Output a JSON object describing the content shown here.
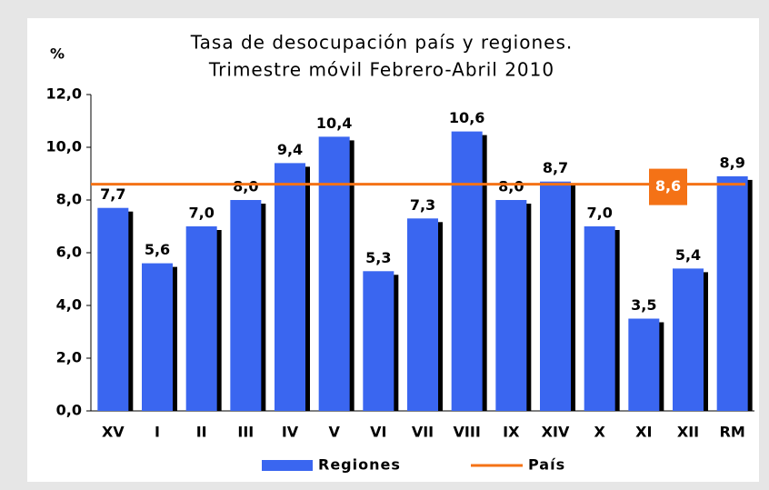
{
  "chart_data": {
    "type": "bar",
    "title": "Tasa de desocupación país y regiones.",
    "subtitle": "Trimestre móvil Febrero-Abril 2010",
    "y_label": "%",
    "categories": [
      "XV",
      "I",
      "II",
      "III",
      "IV",
      "V",
      "VI",
      "VII",
      "VIII",
      "IX",
      "XIV",
      "X",
      "XI",
      "XII",
      "RM"
    ],
    "series": [
      {
        "name": "Regiones",
        "color": "#3a66f0",
        "values": [
          7.7,
          5.6,
          7.0,
          8.0,
          9.4,
          10.4,
          5.3,
          7.3,
          10.6,
          8.0,
          8.7,
          7.0,
          3.5,
          5.4,
          8.9
        ],
        "value_labels": [
          "7,7",
          "5,6",
          "7,0",
          "8,0",
          "9,4",
          "10,4",
          "5,3",
          "7,3",
          "10,6",
          "8,0",
          "8,7",
          "7,0",
          "3,5",
          "5,4",
          "8,9"
        ]
      }
    ],
    "reference_line": {
      "name": "País",
      "value": 8.6,
      "value_label": "8,6",
      "color": "#f47216"
    },
    "ylim": [
      0,
      12
    ],
    "yticks": [
      {
        "value": 0,
        "label": "0,0"
      },
      {
        "value": 2,
        "label": "2,0"
      },
      {
        "value": 4,
        "label": "4,0"
      },
      {
        "value": 6,
        "label": "6,0"
      },
      {
        "value": 8,
        "label": "8,0"
      },
      {
        "value": 10,
        "label": "10,0"
      },
      {
        "value": 12,
        "label": "12,0"
      }
    ],
    "grid": false
  }
}
